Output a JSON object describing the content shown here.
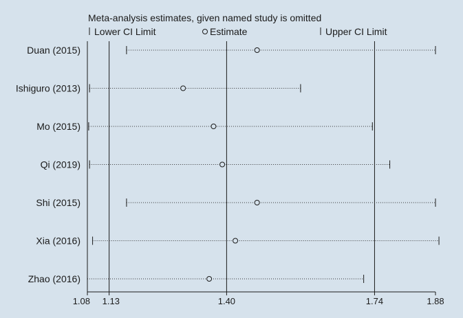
{
  "chart_data": {
    "type": "forest",
    "title": "Meta-analysis estimates, given named study is omitted",
    "legend": {
      "position": "top",
      "lower_label": "Lower CI Limit",
      "estimate_label": "Estimate",
      "upper_label": "Upper CI Limit"
    },
    "studies": [
      {
        "label": "Duan (2015)",
        "estimate": 1.47,
        "lower": 1.17,
        "upper": 1.88
      },
      {
        "label": "Ishiguro (2013)",
        "estimate": 1.3,
        "lower": 1.085,
        "upper": 1.57
      },
      {
        "label": "Mo (2015)",
        "estimate": 1.37,
        "lower": 1.083,
        "upper": 1.735
      },
      {
        "label": "Qi (2019)",
        "estimate": 1.39,
        "lower": 1.085,
        "upper": 1.775
      },
      {
        "label": "Shi (2015)",
        "estimate": 1.47,
        "lower": 1.17,
        "upper": 1.88
      },
      {
        "label": "Xia (2016)",
        "estimate": 1.42,
        "lower": 1.092,
        "upper": 1.888
      },
      {
        "label": "Zhao (2016)",
        "estimate": 1.36,
        "lower": 1.08,
        "upper": 1.715
      }
    ],
    "reference_lines": [
      1.08,
      1.13,
      1.4,
      1.74
    ],
    "x_ticks": [
      {
        "value": 1.08,
        "label": "1.08"
      },
      {
        "value": 1.13,
        "label": "1.13"
      },
      {
        "value": 1.4,
        "label": "1.40"
      },
      {
        "value": 1.74,
        "label": "1.74"
      },
      {
        "value": 1.88,
        "label": "1.88"
      }
    ],
    "xlim": [
      1.08,
      1.88
    ],
    "colors": {
      "background": "#d6e2ec",
      "plot_background": "#d6e2ec",
      "line": "#1a1a1a",
      "text": "#1a1a1a",
      "dotted": "#333333"
    }
  }
}
